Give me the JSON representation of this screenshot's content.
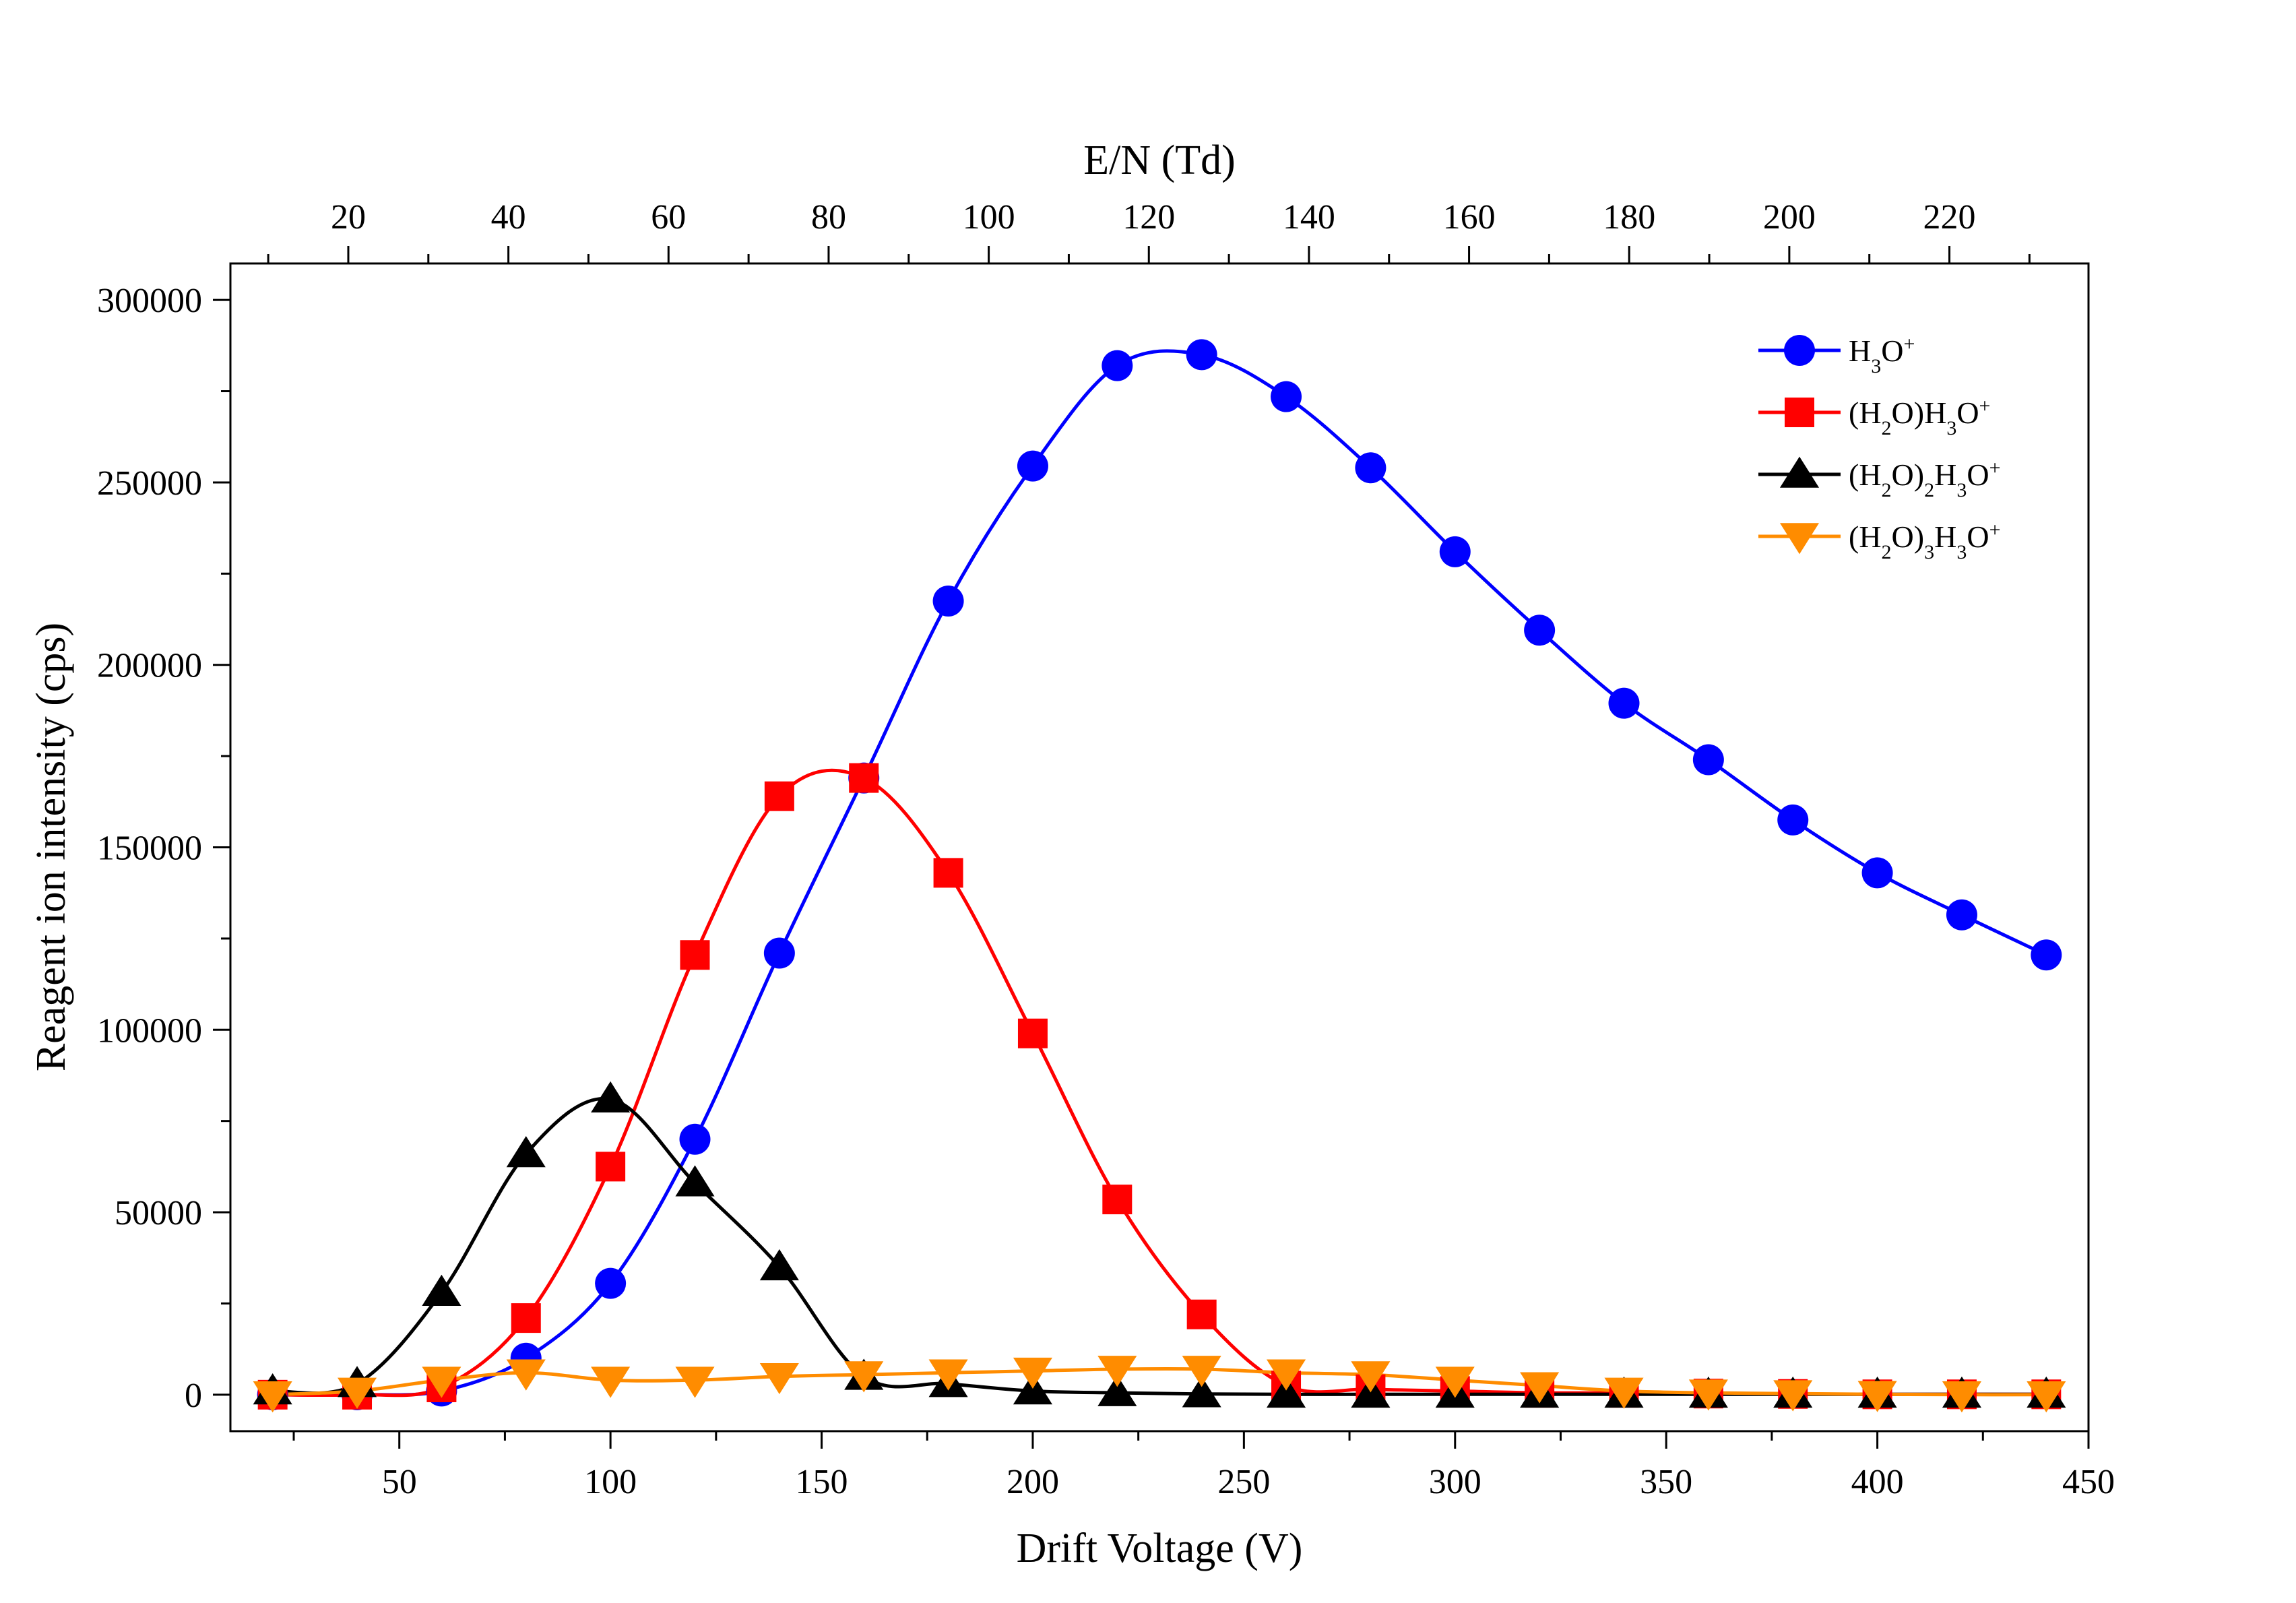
{
  "chart_data": {
    "type": "line",
    "xlabel": "Drift Voltage (V)",
    "ylabel": "Reagent ion intensity (cps)",
    "x2label": "E/N (Td)",
    "xlim": [
      10,
      450
    ],
    "ylim": [
      -10000,
      310000
    ],
    "x_ticks": [
      50,
      100,
      150,
      200,
      250,
      300,
      350,
      400,
      450
    ],
    "y_ticks": [
      0,
      50000,
      100000,
      150000,
      200000,
      250000,
      300000
    ],
    "x2_ticks": [
      20,
      40,
      60,
      80,
      100,
      120,
      140,
      160,
      180,
      200,
      220
    ],
    "x2_per_x": 0.5275,
    "legend_position": "top-right",
    "x": [
      20,
      40,
      60,
      80,
      100,
      120,
      140,
      160,
      180,
      200,
      220,
      240,
      260,
      280,
      300,
      320,
      340,
      360,
      380,
      400,
      420,
      440
    ],
    "series": [
      {
        "name": "H3O+",
        "legend_main": [
          "H",
          "O"
        ],
        "legend_sub": [
          "3",
          ""
        ],
        "legend_sup": "+",
        "color": "#0000ff",
        "marker": "circle",
        "values": [
          0,
          0,
          1000,
          10000,
          30500,
          70000,
          121000,
          169000,
          217500,
          254500,
          282000,
          285000,
          273500,
          254000,
          231000,
          209500,
          189500,
          174000,
          157500,
          143000,
          131500,
          120500
        ]
      },
      {
        "name": "(H2O)H3O+",
        "legend_main": [
          "(H",
          "O)H",
          "O"
        ],
        "legend_sub": [
          "2",
          "3",
          ""
        ],
        "legend_sup": "+",
        "color": "#ff0000",
        "marker": "square",
        "values": [
          0,
          0,
          2000,
          21000,
          62500,
          120500,
          164000,
          169000,
          143000,
          99000,
          53500,
          22000,
          2500,
          1500,
          1000,
          500,
          500,
          300,
          200,
          100,
          100,
          100
        ]
      },
      {
        "name": "(H2O)2H3O+",
        "legend_main": [
          "(H",
          "O)",
          "H",
          "O"
        ],
        "legend_sub": [
          "2",
          "2",
          "3",
          ""
        ],
        "legend_sup": "+",
        "color": "#000000",
        "marker": "triangle-up",
        "values": [
          1000,
          3000,
          28000,
          66000,
          81000,
          58000,
          35000,
          5000,
          3000,
          1000,
          500,
          200,
          100,
          100,
          100,
          100,
          100,
          100,
          100,
          100,
          100,
          100
        ]
      },
      {
        "name": "(H2O)3H3O+",
        "legend_main": [
          "(H",
          "O)",
          "H",
          "O"
        ],
        "legend_sub": [
          "2",
          "3",
          "3",
          ""
        ],
        "legend_sup": "+",
        "color": "#ff8c00",
        "marker": "triangle-down",
        "values": [
          0,
          1000,
          4000,
          6000,
          4000,
          4000,
          5000,
          5500,
          6000,
          6500,
          7000,
          7000,
          6000,
          5500,
          4000,
          2500,
          1000,
          500,
          300,
          100,
          0,
          0
        ]
      }
    ]
  }
}
